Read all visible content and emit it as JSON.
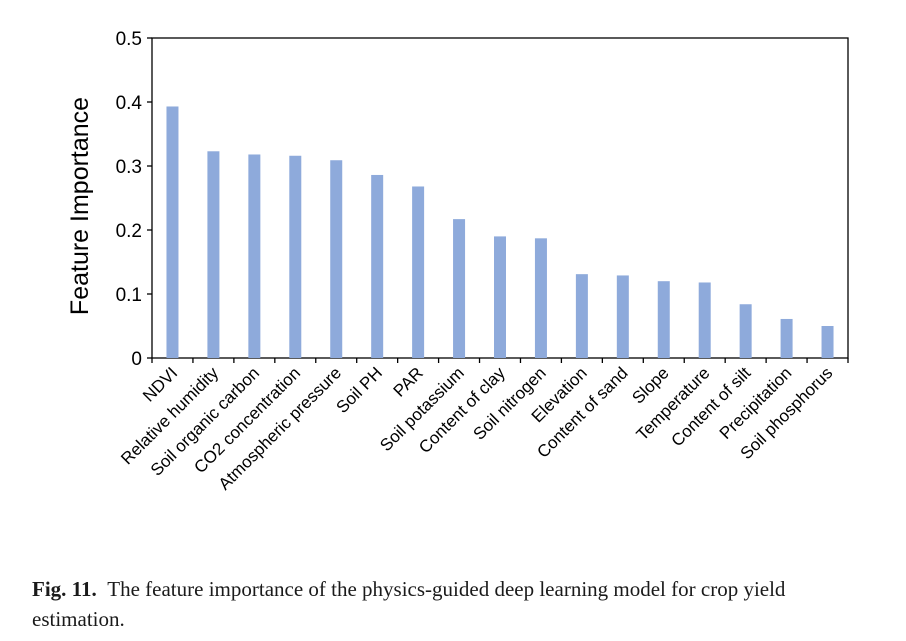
{
  "chart_data": {
    "type": "bar",
    "title": "",
    "xlabel": "",
    "ylabel": "Feature Importance",
    "ylim": [
      0,
      0.5
    ],
    "yticks": [
      "0",
      "0.1",
      "0.2",
      "0.3",
      "0.4",
      "0.5"
    ],
    "grid": false,
    "bar_color": "#8eaadb",
    "categories": [
      "NDVI",
      "Relative humidity",
      "Soil organic carbon",
      "CO2 concentration",
      "Atmospheric pressure",
      "Soil PH",
      "PAR",
      "Soil potassium",
      "Content of clay",
      "Soil nitrogen",
      "Elevation",
      "Content of sand",
      "Slope",
      "Temperature",
      "Content of silt",
      "Precipitation",
      "Soil phosphorus"
    ],
    "values": [
      0.393,
      0.323,
      0.318,
      0.316,
      0.309,
      0.286,
      0.268,
      0.217,
      0.19,
      0.187,
      0.131,
      0.129,
      0.12,
      0.118,
      0.084,
      0.061,
      0.05
    ]
  },
  "caption": {
    "label": "Fig. 11.",
    "text": "The feature importance of the physics-guided deep learning model for crop yield estimation."
  }
}
